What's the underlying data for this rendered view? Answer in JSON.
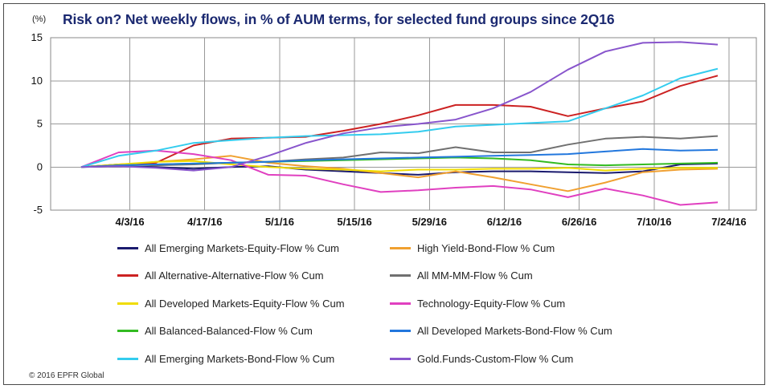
{
  "unit_label": "(%)",
  "copyright": "© 2016 EPFR Global",
  "chart_data": {
    "type": "line",
    "title": "Risk on? Net weekly flows, in % of AUM terms, for selected fund groups since 2Q16",
    "ylim": [
      -5,
      15
    ],
    "y_ticks": [
      15,
      10,
      5,
      0,
      -5
    ],
    "x_tick_labels": [
      "4/3/16",
      "4/17/16",
      "5/1/16",
      "5/15/16",
      "5/29/16",
      "6/12/16",
      "6/26/16",
      "7/10/16",
      "7/24/16"
    ],
    "x_tick_index": [
      1.3,
      3.3,
      5.3,
      7.3,
      9.3,
      11.3,
      13.3,
      15.3,
      17.3
    ],
    "x": [
      "3/30/16",
      "4/6/16",
      "4/13/16",
      "4/20/16",
      "4/27/16",
      "5/4/16",
      "5/11/16",
      "5/18/16",
      "5/25/16",
      "6/1/16",
      "6/8/16",
      "6/15/16",
      "6/22/16",
      "6/29/16",
      "7/6/16",
      "7/13/16",
      "7/20/16",
      "7/27/16"
    ],
    "grid": true,
    "legend_position": "bottom",
    "series": [
      {
        "name": "All Emerging Markets-Equity-Flow % Cum",
        "color": "#1a1a6e",
        "values": [
          0,
          0.1,
          0.0,
          -0.2,
          0.0,
          0.1,
          -0.3,
          -0.5,
          -0.7,
          -0.9,
          -0.6,
          -0.5,
          -0.5,
          -0.6,
          -0.7,
          -0.5,
          0.3,
          0.4
        ]
      },
      {
        "name": "High Yield-Bond-Flow % Cum",
        "color": "#f0a030",
        "values": [
          0,
          0.2,
          0.6,
          0.9,
          1.3,
          0.5,
          0.1,
          -0.2,
          -0.7,
          -1.2,
          -0.5,
          -1.2,
          -2.0,
          -2.8,
          -1.8,
          -0.6,
          -0.3,
          -0.2
        ]
      },
      {
        "name": "All Alternative-Alternative-Flow % Cum",
        "color": "#cc2222",
        "values": [
          0,
          0.3,
          0.5,
          2.5,
          3.3,
          3.4,
          3.5,
          4.2,
          5.0,
          6.0,
          7.2,
          7.2,
          7.0,
          5.9,
          6.8,
          7.6,
          9.4,
          10.6
        ]
      },
      {
        "name": "All MM-MM-Flow % Cum",
        "color": "#707070",
        "values": [
          0,
          0.3,
          0.2,
          0.3,
          0.5,
          0.6,
          0.9,
          1.1,
          1.7,
          1.6,
          2.3,
          1.7,
          1.7,
          2.6,
          3.3,
          3.5,
          3.3,
          3.6
        ]
      },
      {
        "name": "All Developed Markets-Equity-Flow % Cum",
        "color": "#f0dc00",
        "values": [
          0,
          0.3,
          0.6,
          0.7,
          0.3,
          0.0,
          -0.2,
          -0.3,
          -0.5,
          -0.3,
          -0.3,
          -0.2,
          -0.2,
          -0.1,
          -0.4,
          -0.2,
          -0.1,
          -0.1
        ]
      },
      {
        "name": "Technology-Equity-Flow % Cum",
        "color": "#e040c0",
        "values": [
          0,
          1.7,
          1.9,
          1.5,
          0.8,
          -0.9,
          -1.0,
          -2.0,
          -2.9,
          -2.7,
          -2.4,
          -2.2,
          -2.6,
          -3.5,
          -2.5,
          -3.3,
          -4.4,
          -4.1
        ]
      },
      {
        "name": "All Balanced-Balanced-Flow % Cum",
        "color": "#33bb22",
        "values": [
          0,
          0.2,
          0.3,
          0.4,
          0.5,
          0.6,
          0.7,
          0.8,
          0.9,
          1.0,
          1.1,
          1.0,
          0.8,
          0.3,
          0.2,
          0.3,
          0.4,
          0.5
        ]
      },
      {
        "name": "All Developed Markets-Bond-Flow % Cum",
        "color": "#2277dd",
        "values": [
          0,
          0.2,
          0.3,
          0.4,
          0.5,
          0.6,
          0.8,
          0.9,
          1.0,
          1.1,
          1.2,
          1.3,
          1.4,
          1.5,
          1.8,
          2.1,
          1.9,
          2.0
        ]
      },
      {
        "name": "All Emerging Markets-Bond-Flow % Cum",
        "color": "#33ccee",
        "values": [
          0,
          1.3,
          1.9,
          2.8,
          3.1,
          3.4,
          3.6,
          3.7,
          3.8,
          4.1,
          4.7,
          4.9,
          5.1,
          5.3,
          6.8,
          8.3,
          10.3,
          11.4
        ]
      },
      {
        "name": "Gold.Funds-Custom-Flow % Cum",
        "color": "#8855cc",
        "values": [
          0,
          0.1,
          -0.1,
          -0.4,
          0.0,
          1.3,
          2.8,
          3.9,
          4.6,
          5.0,
          5.5,
          6.8,
          8.7,
          11.3,
          13.4,
          14.4,
          14.5,
          14.2
        ]
      }
    ]
  }
}
